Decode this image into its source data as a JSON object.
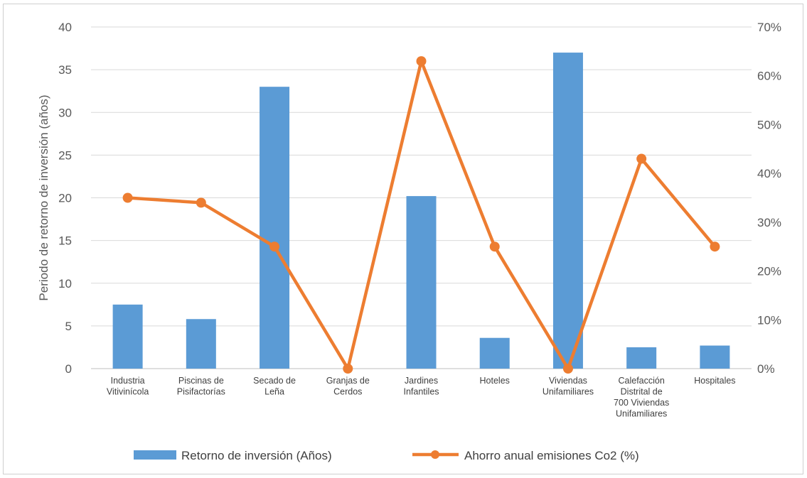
{
  "chart_data": {
    "type": "bar",
    "categories": [
      [
        "Industria",
        "Vitivinícola"
      ],
      [
        "Piscinas de",
        "Pisifactorías"
      ],
      [
        "Secado de",
        "Leña"
      ],
      [
        "Granjas de",
        "Cerdos"
      ],
      [
        "Jardines",
        "Infantiles"
      ],
      [
        "Hoteles"
      ],
      [
        "Viviendas",
        "Unifamiliares"
      ],
      [
        "Calefacción",
        "Distrital de",
        "700 Viviendas",
        "Unifamiliares"
      ],
      [
        "Hospitales"
      ]
    ],
    "series": [
      {
        "name": "Retorno de inversión (Años)",
        "type": "bar",
        "axis": "left",
        "color": "#5B9BD5",
        "values": [
          7.5,
          5.8,
          33,
          0,
          20.2,
          3.6,
          37,
          2.5,
          2.7
        ]
      },
      {
        "name": "Ahorro anual emisiones Co2 (%)",
        "type": "line",
        "axis": "right",
        "color": "#ED7D31",
        "values": [
          35,
          34,
          25,
          0,
          63,
          25,
          0,
          43,
          25
        ]
      }
    ],
    "ylabel": "Periodo de retorno de inversión (años)",
    "ylim": [
      0,
      40
    ],
    "yticks": [
      "0",
      "5",
      "10",
      "15",
      "20",
      "25",
      "30",
      "35",
      "40"
    ],
    "y2lim": [
      0,
      70
    ],
    "y2ticks": [
      "0%",
      "10%",
      "20%",
      "30%",
      "40%",
      "50%",
      "60%",
      "70%"
    ],
    "grid": true,
    "legend": "bottom"
  }
}
